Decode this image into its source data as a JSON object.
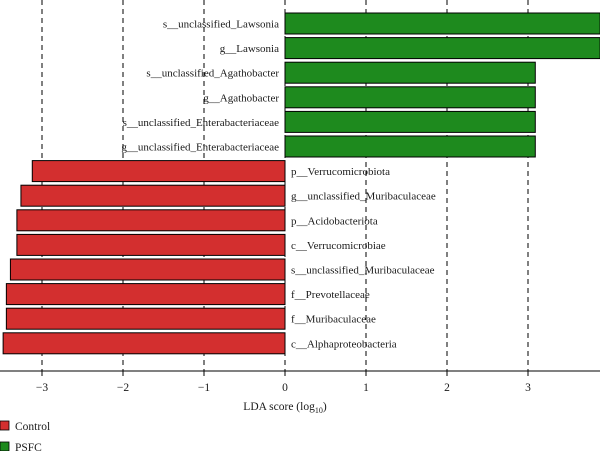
{
  "chart_data": {
    "type": "bar",
    "orientation": "horizontal",
    "xlabel": "LDA score (log10)",
    "xlabel_main": "LDA score (log",
    "xlabel_sub": "10",
    "xlabel_close": ")",
    "xlim": [
      -3.5,
      3.9
    ],
    "xticks": [
      -3,
      -2,
      -1,
      0,
      1,
      2,
      3
    ],
    "grid": "vertical dashed lines at each tick",
    "categories": [
      "s__unclassified_Lawsonia",
      "g__Lawsonia",
      "s__unclassified_Agathobacter",
      "g__Agathobacter",
      "s__unclassified_Enterabacteriaceae",
      "g__unclassified_Enterabacteriaceae",
      "p__Verrucomicrobiota",
      "g__unclassified_Muribaculaceae",
      "p__Acidobacteriota",
      "c__Verrucomicrobiae",
      "s__unclassified_Muribaculaceae",
      "f__Prevotellaceae",
      "f__Muribaculaceae",
      "c__Alphaproteobacteria"
    ],
    "values": [
      3.89,
      3.89,
      3.09,
      3.09,
      3.09,
      3.09,
      -3.12,
      -3.26,
      -3.31,
      -3.31,
      -3.39,
      -3.44,
      -3.44,
      -3.48
    ],
    "groups": [
      "PSFC",
      "PSFC",
      "PSFC",
      "PSFC",
      "PSFC",
      "PSFC",
      "Control",
      "Control",
      "Control",
      "Control",
      "Control",
      "Control",
      "Control",
      "Control"
    ],
    "series": [
      {
        "name": "Control",
        "color": "#d32f2f"
      },
      {
        "name": "PSFC",
        "color": "#1e8a1e"
      }
    ],
    "legend_position": "bottom-left"
  }
}
